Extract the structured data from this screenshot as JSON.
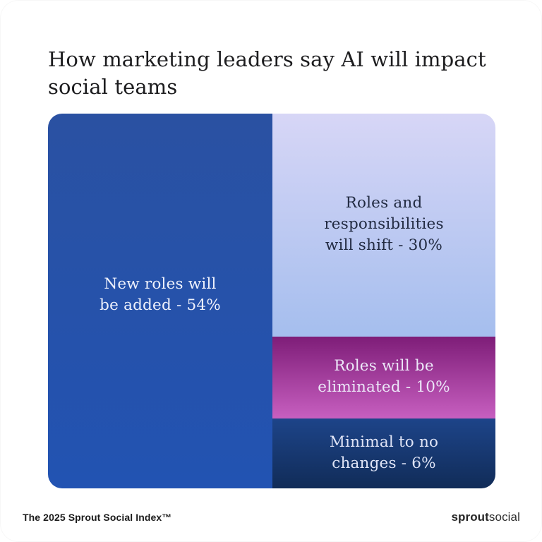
{
  "header": {
    "title": "How marketing leaders say AI will impact social teams"
  },
  "chart_data": {
    "type": "treemap",
    "title": "How marketing leaders say AI will impact social teams",
    "unit": "%",
    "legend_position": "none",
    "segments": [
      {
        "label": "New roles will be added",
        "value": 54,
        "display_text": "New roles will be added - 54%",
        "lines": [
          "New roles will",
          "be added - 54%"
        ],
        "color_top": "#2a51a2",
        "color_bottom": "#2253b2",
        "text_color": "#eef1fc",
        "position": "left-column-full-height"
      },
      {
        "label": "Roles and responsibilities will shift",
        "value": 30,
        "display_text": "Roles and responsibilities will shift - 30%",
        "lines": [
          "Roles and",
          "responsibilities",
          "will shift - 30%"
        ],
        "color_top": "#d7d6f6",
        "color_bottom": "#a5beee",
        "text_color": "#222b42",
        "position": "right-column-top"
      },
      {
        "label": "Roles will be eliminated",
        "value": 10,
        "display_text": "Roles will be eliminated - 10%",
        "lines": [
          "Roles will be",
          "eliminated - 10%"
        ],
        "color_top": "#7e1d78",
        "color_bottom": "#c75fc0",
        "text_color": "#ece7f8",
        "position": "right-column-middle"
      },
      {
        "label": "Minimal to no changes",
        "value": 6,
        "display_text": "Minimal to no changes - 6%",
        "lines": [
          "Minimal to no",
          "changes - 6%"
        ],
        "color_top": "#1d4489",
        "color_bottom": "#112c58",
        "text_color": "#dfe4f6",
        "position": "right-column-bottom"
      }
    ]
  },
  "footer": {
    "index_label": "The 2025 Sprout Social Index™",
    "logo": {
      "bold_part": "sprout",
      "regular_part": "social"
    }
  }
}
